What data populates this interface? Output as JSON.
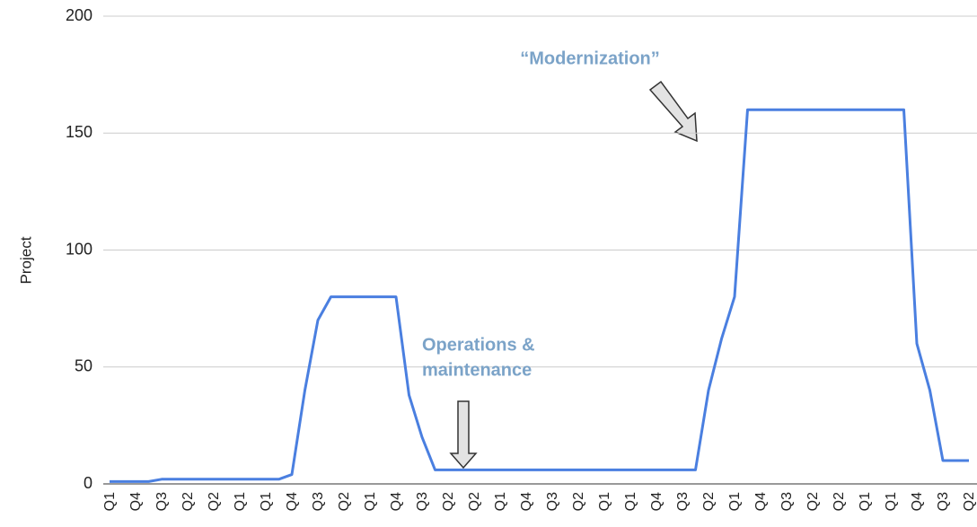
{
  "chart_data": {
    "type": "line",
    "ylabel": "Project",
    "categories": [
      "Q1",
      null,
      "Q4",
      null,
      "Q3",
      null,
      "Q2",
      null,
      "Q2",
      null,
      "Q1",
      null,
      "Q1",
      null,
      "Q4",
      null,
      "Q3",
      null,
      "Q2",
      null,
      "Q1",
      null,
      "Q4",
      null,
      "Q3",
      null,
      "Q2",
      null,
      "Q2",
      null,
      "Q1",
      null,
      "Q4",
      null,
      "Q3",
      null,
      "Q2",
      null,
      "Q1",
      null,
      "Q1",
      null,
      "Q4",
      null,
      "Q3",
      null,
      "Q2",
      null,
      "Q1",
      null,
      "Q4",
      null,
      "Q3",
      null,
      "Q2",
      null,
      "Q2",
      null,
      "Q1",
      null,
      "Q1",
      null,
      "Q4",
      null,
      "Q3",
      null,
      "Q2"
    ],
    "series": [
      {
        "name": "Project",
        "color": "#4a7fe0",
        "values": [
          1,
          1,
          1,
          1,
          2,
          2,
          2,
          2,
          2,
          2,
          2,
          2,
          2,
          2,
          4,
          40,
          70,
          80,
          80,
          80,
          80,
          80,
          80,
          38,
          20,
          6,
          6,
          6,
          6,
          6,
          6,
          6,
          6,
          6,
          6,
          6,
          6,
          6,
          6,
          6,
          6,
          6,
          6,
          6,
          6,
          6,
          40,
          62,
          80,
          160,
          160,
          160,
          160,
          160,
          160,
          160,
          160,
          160,
          160,
          160,
          160,
          160,
          60,
          40,
          10,
          10,
          10
        ]
      }
    ],
    "ylim": [
      0,
      200
    ],
    "yticks": [
      0,
      50,
      100,
      150,
      200
    ],
    "grid": true,
    "annotations": [
      [
        "“Modernization”"
      ],
      [
        "Operations &",
        "maintenance"
      ]
    ]
  }
}
